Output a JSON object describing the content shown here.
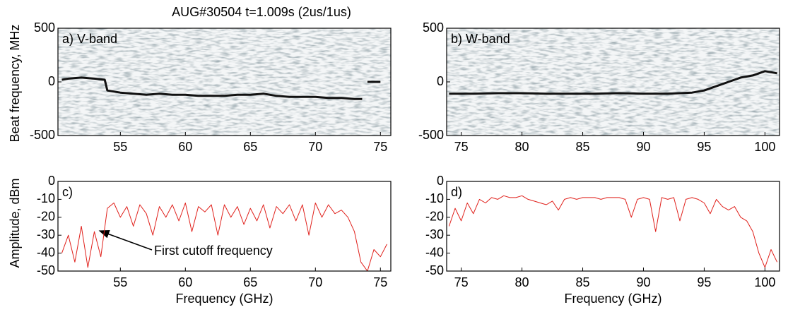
{
  "title": "AUG#30504   t=1.009s    (2us/1us)",
  "ylabel_top": "Beat frequency, MHz",
  "ylabel_bottom": "Amplitude, dBm",
  "annotation": "First cutoff frequency",
  "chart_data": [
    {
      "type": "spectrogram",
      "label": "a) V-band",
      "xlim": [
        50.2,
        75.8
      ],
      "ylim": [
        -500,
        500
      ],
      "xticks": [
        55,
        60,
        65,
        70,
        75
      ],
      "yticks": [
        -500,
        0,
        500
      ],
      "x": [
        50.5,
        51,
        52,
        53,
        53.8,
        54,
        55,
        56,
        57,
        58,
        59,
        60,
        61,
        62,
        63,
        64,
        65,
        66,
        67,
        68,
        69,
        70,
        71,
        72,
        73,
        73.6,
        73.8,
        74,
        75
      ],
      "series": [
        {
          "color": "#111",
          "values": [
            20,
            30,
            40,
            30,
            20,
            -80,
            -100,
            -110,
            -120,
            -110,
            -120,
            -120,
            -130,
            -130,
            -130,
            -120,
            -120,
            -110,
            -130,
            -140,
            -140,
            -140,
            -150,
            -150,
            -160,
            -160,
            null,
            0,
            0
          ]
        }
      ]
    },
    {
      "type": "spectrogram",
      "label": "b) W-band",
      "xlim": [
        73.8,
        101.2
      ],
      "ylim": [
        -500,
        500
      ],
      "xticks": [
        75,
        80,
        85,
        90,
        95,
        100
      ],
      "yticks": [
        -500,
        0,
        500
      ],
      "x": [
        74,
        76,
        78,
        80,
        82,
        84,
        86,
        88,
        90,
        92,
        94,
        95,
        96,
        97,
        98,
        99,
        100,
        101
      ],
      "series": [
        {
          "color": "#111",
          "values": [
            -110,
            -110,
            -105,
            -105,
            -110,
            -110,
            -110,
            -105,
            -110,
            -110,
            -100,
            -80,
            -40,
            0,
            40,
            60,
            100,
            80
          ]
        }
      ]
    },
    {
      "type": "line",
      "label": "c)",
      "xlabel": "Frequency (GHz)",
      "xlim": [
        50.2,
        75.8
      ],
      "ylim": [
        -50,
        0
      ],
      "xticks": [
        55,
        60,
        65,
        70,
        75
      ],
      "yticks": [
        -50,
        -40,
        -30,
        -20,
        -10,
        0
      ],
      "x": [
        50.5,
        51,
        51.5,
        52,
        52.5,
        53,
        53.5,
        54,
        54.5,
        55,
        55.5,
        56,
        56.5,
        57,
        57.5,
        58,
        58.5,
        59,
        59.5,
        60,
        60.5,
        61,
        61.5,
        62,
        62.5,
        63,
        63.5,
        64,
        64.5,
        65,
        65.5,
        66,
        66.5,
        67,
        67.5,
        68,
        68.5,
        69,
        69.5,
        70,
        70.5,
        71,
        71.5,
        72,
        72.5,
        73,
        73.5,
        74,
        74.5,
        75,
        75.5
      ],
      "series": [
        {
          "color": "#e0201b",
          "values": [
            -40,
            -30,
            -45,
            -25,
            -48,
            -28,
            -42,
            -15,
            -12,
            -20,
            -14,
            -25,
            -13,
            -18,
            -30,
            -14,
            -20,
            -13,
            -22,
            -12,
            -28,
            -14,
            -17,
            -13,
            -30,
            -13,
            -20,
            -14,
            -24,
            -15,
            -22,
            -13,
            -26,
            -14,
            -18,
            -13,
            -22,
            -13,
            -30,
            -12,
            -20,
            -13,
            -18,
            -16,
            -20,
            -28,
            -45,
            -50,
            -38,
            -42,
            -35
          ]
        }
      ]
    },
    {
      "type": "line",
      "label": "d)",
      "xlabel": "Frequency (GHz)",
      "xlim": [
        73.8,
        101.2
      ],
      "ylim": [
        -50,
        0
      ],
      "xticks": [
        75,
        80,
        85,
        90,
        95,
        100
      ],
      "yticks": [
        -50,
        -40,
        -30,
        -20,
        -10,
        0
      ],
      "x": [
        74,
        74.5,
        75,
        75.5,
        76,
        76.5,
        77,
        77.5,
        78,
        78.5,
        79,
        79.5,
        80,
        80.5,
        81,
        81.5,
        82,
        82.5,
        83,
        83.5,
        84,
        84.5,
        85,
        85.5,
        86,
        86.5,
        87,
        87.5,
        88,
        88.5,
        89,
        89.5,
        90,
        90.5,
        91,
        91.5,
        92,
        92.5,
        93,
        93.5,
        94,
        94.5,
        95,
        95.5,
        96,
        96.5,
        97,
        97.5,
        98,
        98.5,
        99,
        99.5,
        100,
        100.5,
        101
      ],
      "series": [
        {
          "color": "#e0201b",
          "values": [
            -25,
            -15,
            -22,
            -12,
            -18,
            -10,
            -12,
            -9,
            -10,
            -8,
            -9,
            -9,
            -8,
            -10,
            -11,
            -12,
            -13,
            -11,
            -16,
            -10,
            -9,
            -10,
            -9,
            -9,
            -9,
            -10,
            -9,
            -9,
            -9,
            -10,
            -20,
            -10,
            -9,
            -10,
            -28,
            -9,
            -10,
            -9,
            -22,
            -10,
            -9,
            -10,
            -12,
            -18,
            -10,
            -14,
            -16,
            -14,
            -20,
            -22,
            -28,
            -40,
            -48,
            -38,
            -45
          ]
        }
      ]
    }
  ]
}
